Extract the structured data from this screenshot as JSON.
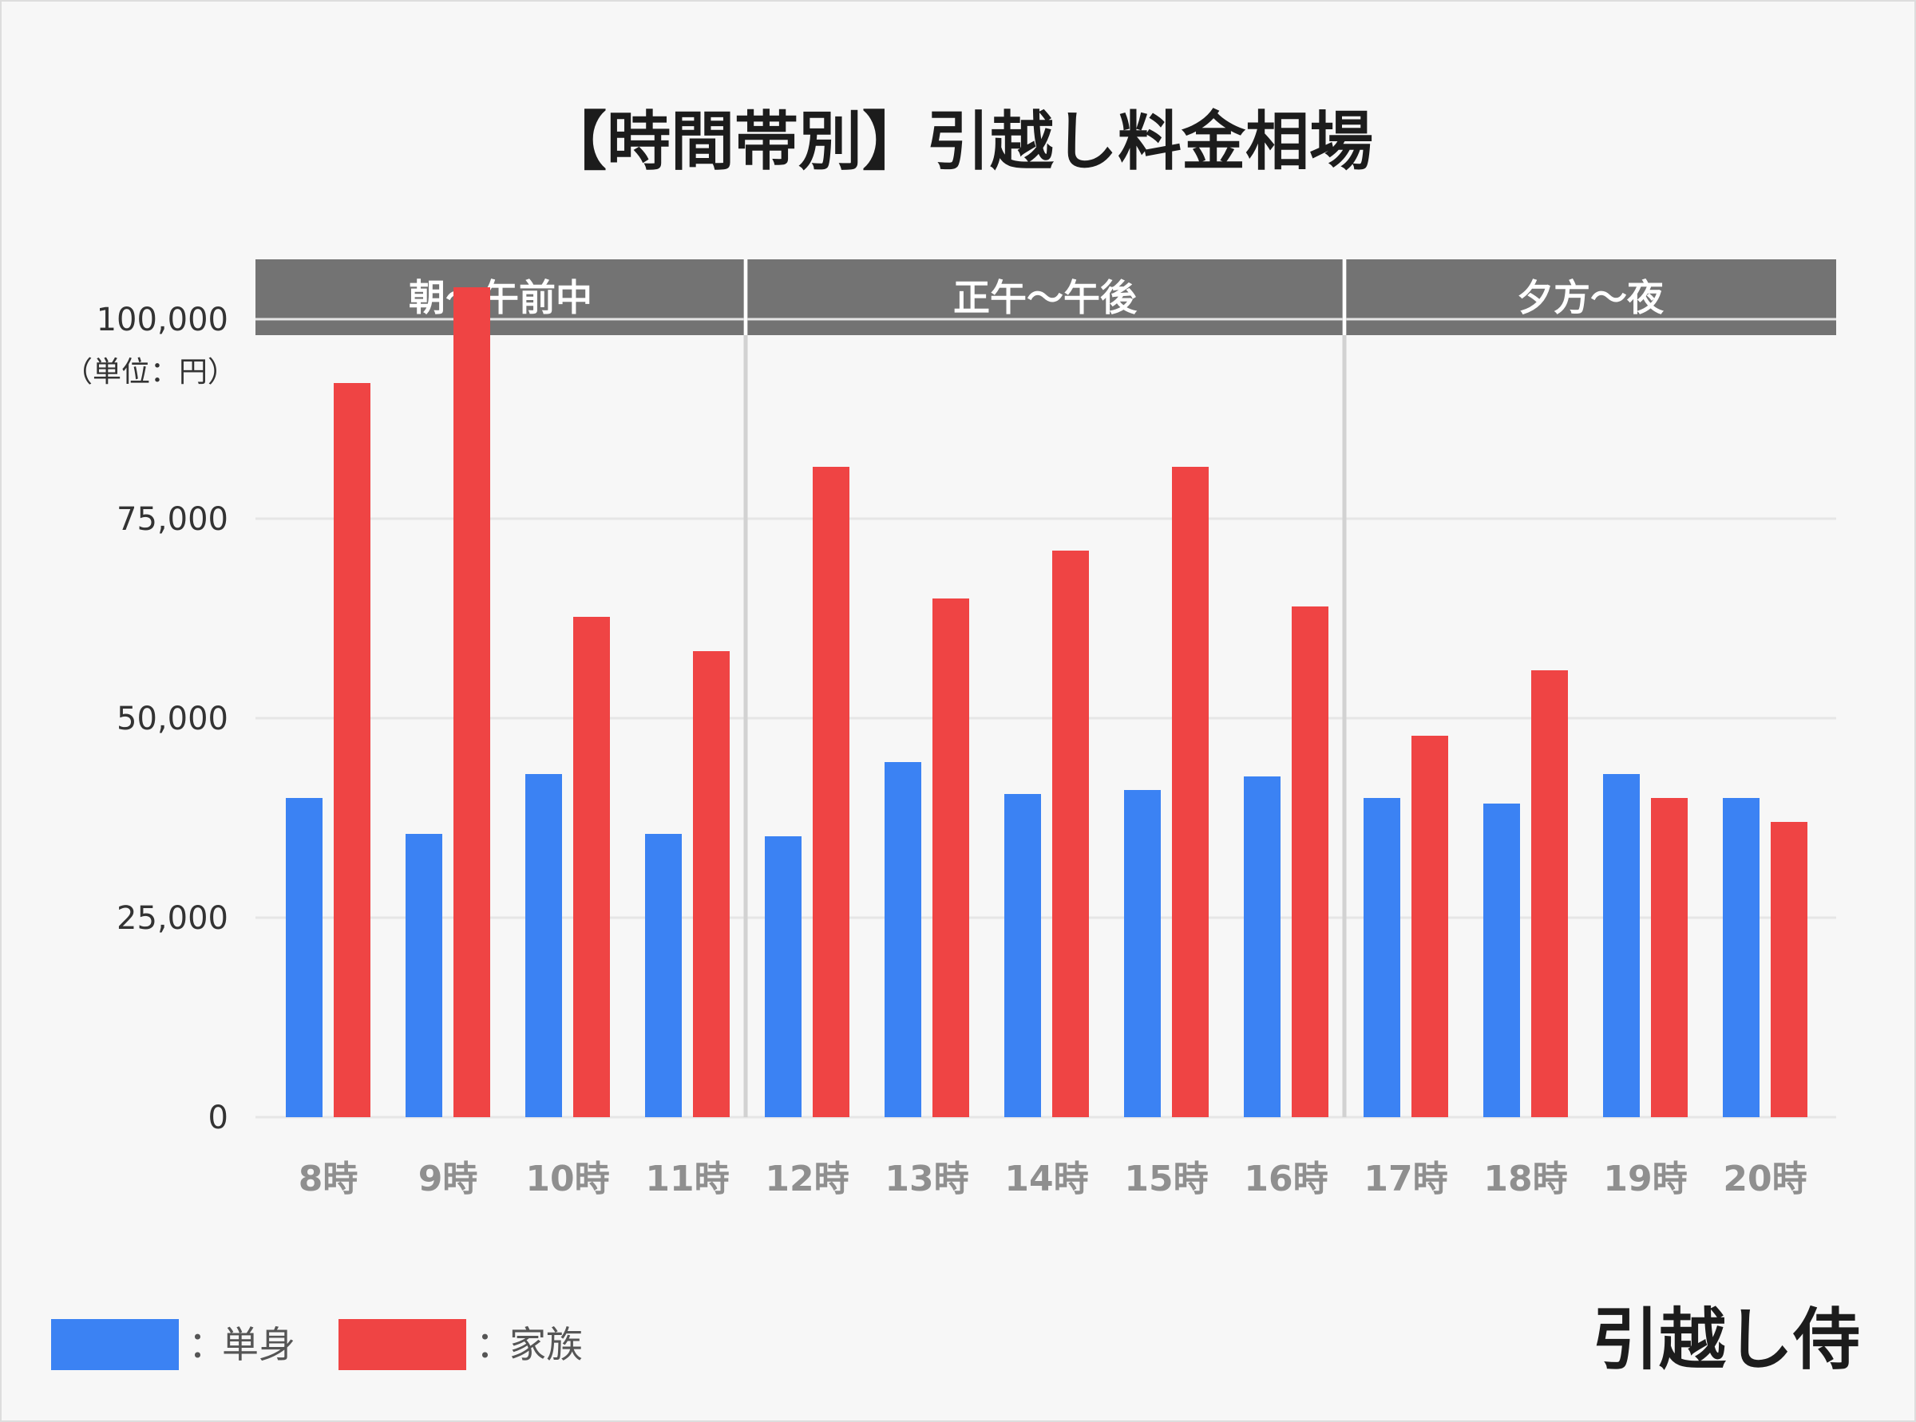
{
  "chart_data": {
    "type": "bar",
    "title": "【時間帯別】引越し料金相場",
    "unit_label": "（単位：円）",
    "categories": [
      "8時",
      "9時",
      "10時",
      "11時",
      "12時",
      "13時",
      "14時",
      "15時",
      "16時",
      "17時",
      "18時",
      "19時",
      "20時"
    ],
    "series": [
      {
        "name": "単身",
        "color": "#3b82f3",
        "values": [
          40000,
          35500,
          43000,
          35500,
          35200,
          44500,
          40500,
          41000,
          42700,
          40000,
          39300,
          43000,
          40000
        ]
      },
      {
        "name": "家族",
        "color": "#ef4444",
        "values": [
          92000,
          104000,
          62700,
          58400,
          81500,
          65000,
          71000,
          81500,
          64000,
          47800,
          56000,
          40000,
          37000
        ]
      }
    ],
    "ylim": [
      0,
      110000
    ],
    "yticks": [
      0,
      25000,
      50000,
      75000,
      100000
    ],
    "ytick_labels": [
      "0",
      "25,000",
      "50,000",
      "75,000",
      "100,000"
    ],
    "grid": true,
    "groups": [
      {
        "label": "朝〜午前中",
        "from": 0,
        "to": 3
      },
      {
        "label": "正午〜午後",
        "from": 4,
        "to": 8
      },
      {
        "label": "夕方〜夜",
        "from": 9,
        "to": 12
      }
    ],
    "legend": {
      "position": "bottom-left",
      "separator": "："
    }
  },
  "brand": {
    "logo_text": "引越し侍"
  },
  "colors": {
    "background": "#f7f7f7",
    "band": "#737373",
    "divider": "#d2d2d2",
    "grid": "#e6e6e6",
    "title": "#1c1c1c",
    "xtick": "#8f8f8f"
  }
}
